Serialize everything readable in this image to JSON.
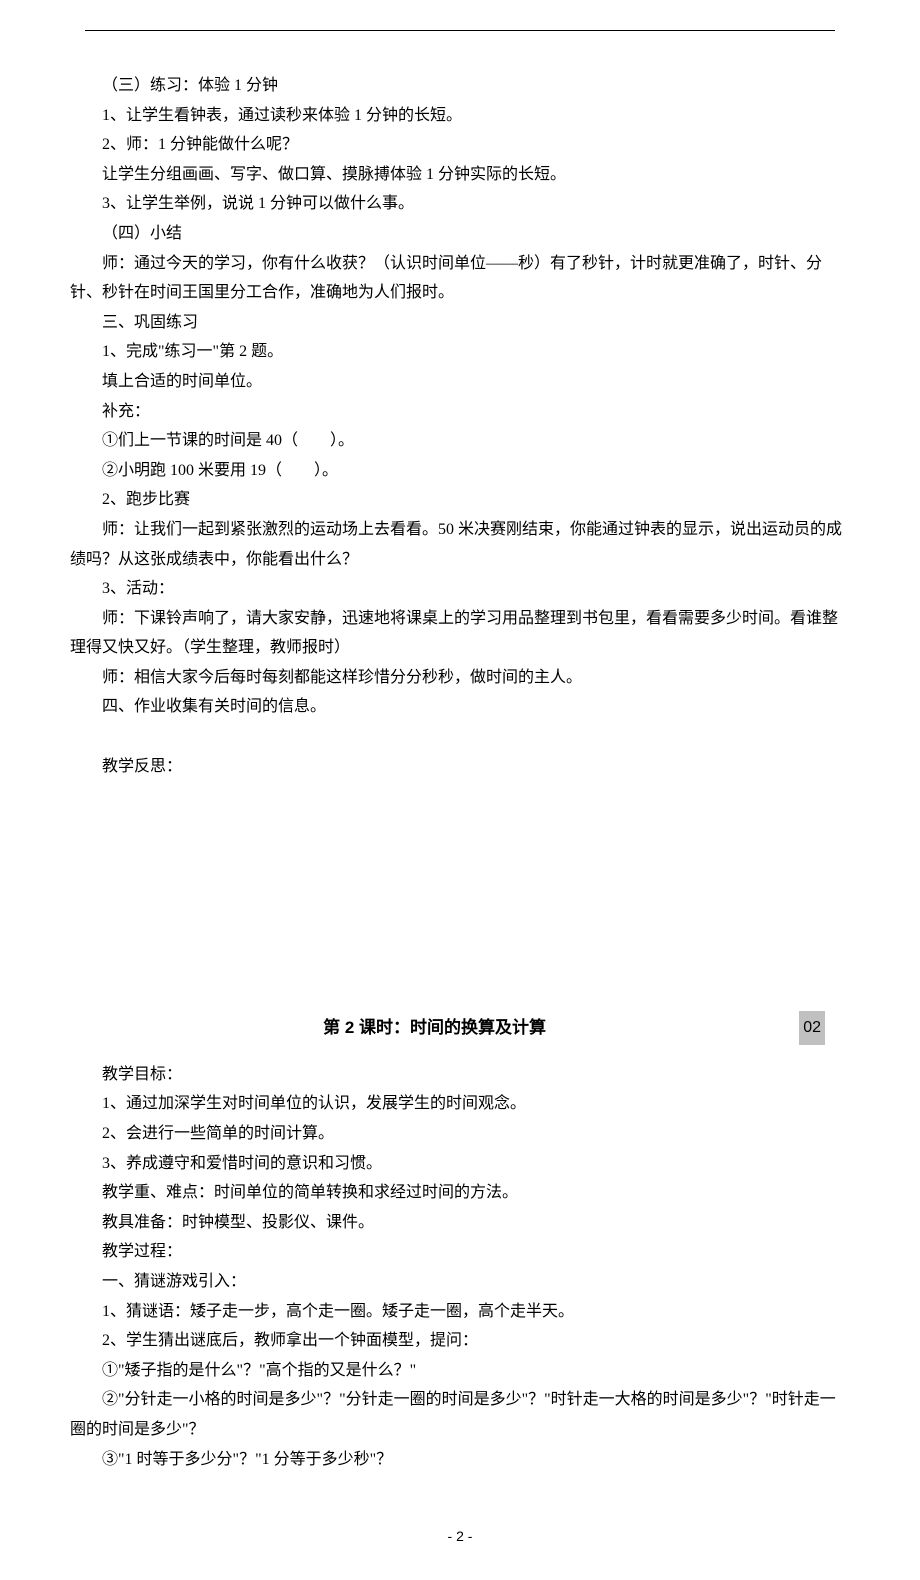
{
  "section1": {
    "p1": "（三）练习：体验 1 分钟",
    "p2": "1、让学生看钟表，通过读秒来体验 1 分钟的长短。",
    "p3": "2、师：1 分钟能做什么呢？",
    "p4": "让学生分组画画、写字、做口算、摸脉搏体验 1 分钟实际的长短。",
    "p5": "3、让学生举例，说说 1 分钟可以做什么事。",
    "p6": "（四）小结",
    "p7": "师：通过今天的学习，你有什么收获？（认识时间单位——秒）有了秒针，计时就更准确了，时针、分针、秒针在时间王国里分工合作，准确地为人们报时。",
    "p8": "三、巩固练习",
    "p9": "1、完成\"练习一\"第 2 题。",
    "p10": "填上合适的时间单位。",
    "p11": "补充：",
    "p12": "①们上一节课的时间是 40（　　）。",
    "p13": "②小明跑 100 米要用 19（　　）。",
    "p14": "2、跑步比赛",
    "p15": "师：让我们一起到紧张激烈的运动场上去看看。50 米决赛刚结束，你能通过钟表的显示，说出运动员的成绩吗？从这张成绩表中，你能看出什么？",
    "p16": "3、活动：",
    "p17": "师：下课铃声响了，请大家安静，迅速地将课桌上的学习用品整理到书包里，看看需要多少时间。看谁整理得又快又好。（学生整理，教师报时）",
    "p18": "师：相信大家今后每时每刻都能这样珍惜分分秒秒，做时间的主人。",
    "p19": "四、作业收集有关时间的信息。",
    "p20": "教学反思："
  },
  "lesson2": {
    "title": "第 2 课时：时间的换算及计算",
    "badge": "02",
    "p1": "教学目标：",
    "p2": "1、通过加深学生对时间单位的认识，发展学生的时间观念。",
    "p3": "2、会进行一些简单的时间计算。",
    "p4": "3、养成遵守和爱惜时间的意识和习惯。",
    "p5": "教学重、难点：时间单位的简单转换和求经过时间的方法。",
    "p6": "教具准备：时钟模型、投影仪、课件。",
    "p7": "教学过程：",
    "p8": "一、猜谜游戏引入：",
    "p9": "1、猜谜语：矮子走一步，高个走一圈。矮子走一圈，高个走半天。",
    "p10": "2、学生猜出谜底后，教师拿出一个钟面模型，提问：",
    "p11": "①\"矮子指的是什么\"？\"高个指的又是什么？\"",
    "p12": "②\"分针走一小格的时间是多少\"？\"分针走一圈的时间是多少\"？\"时针走一大格的时间是多少\"？\"时针走一圈的时间是多少\"？",
    "p13": "③\"1 时等于多少分\"？\"1 分等于多少秒\"？"
  },
  "footer": {
    "page": "- 2 -"
  }
}
